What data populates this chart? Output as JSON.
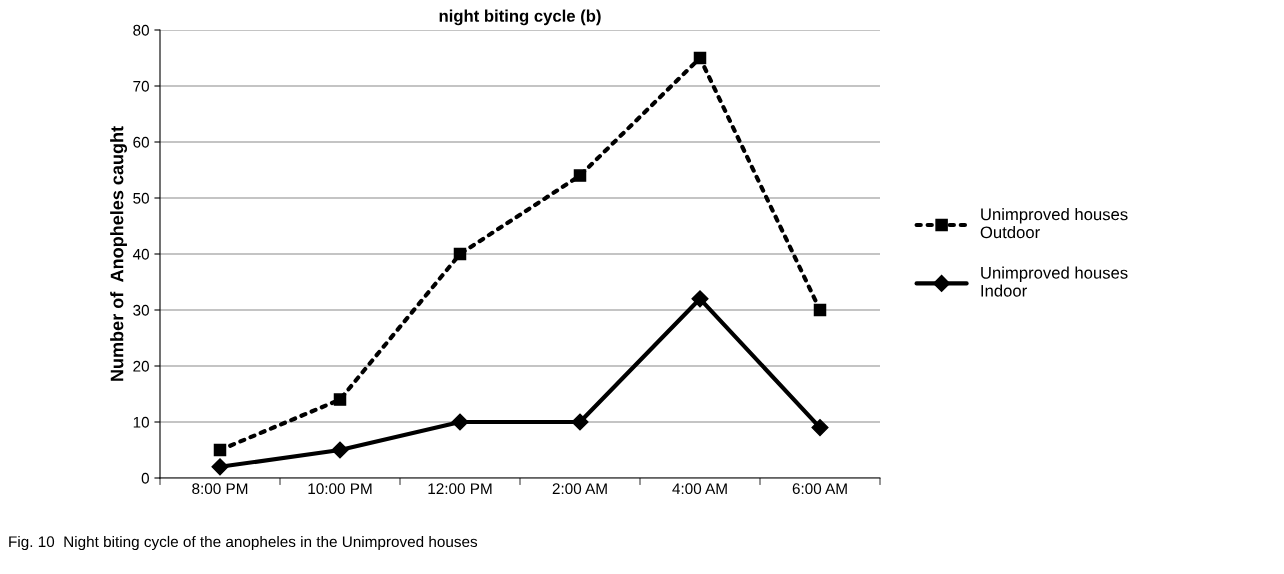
{
  "chart_data": {
    "type": "line",
    "title": "night biting cycle (b)",
    "ylabel": "Number of  Anopheles caught",
    "categories": [
      "8:00 PM",
      "10:00 PM",
      "12:00 PM",
      "2:00 AM",
      "4:00 AM",
      "6:00 AM"
    ],
    "series": [
      {
        "name": "Unimproved houses\nOutdoor",
        "color": "#000000",
        "values": [
          5,
          14,
          40,
          54,
          75,
          30
        ],
        "marker": "square",
        "line_style": "dotted"
      },
      {
        "name": "Unimproved houses\nIndoor",
        "color": "#000000",
        "values": [
          2,
          5,
          10,
          10,
          32,
          9
        ],
        "marker": "diamond",
        "line_style": "solid"
      }
    ],
    "ylim": [
      0,
      80
    ],
    "yticks": [
      0,
      10,
      20,
      30,
      40,
      50,
      60,
      70,
      80
    ],
    "grid": "y",
    "legend": "right",
    "annotations": [
      "Fig. 10  Night biting cycle of the anopheles in the Unimproved houses"
    ]
  }
}
